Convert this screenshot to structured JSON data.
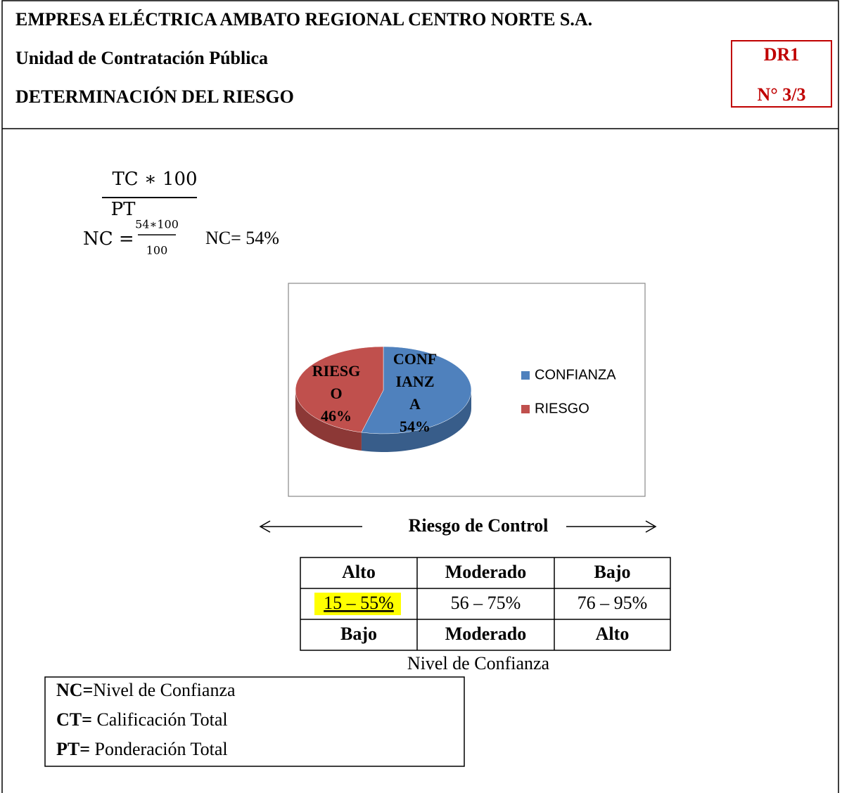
{
  "header": {
    "company": "EMPRESA ELÉCTRICA AMBATO REGIONAL CENTRO NORTE S.A.",
    "unit": "Unidad de Contratación Pública",
    "title": "DETERMINACIÓN DEL RIESGO",
    "code": "DR1",
    "number": "N° 3/3"
  },
  "formula": {
    "numerator": "TC ∗ 100",
    "denominator": "PT",
    "lhs": "NC =",
    "numerator2": "54∗100",
    "denominator2": "100",
    "result": "NC= 54%"
  },
  "chart": {
    "type": "pie",
    "categories": [
      "CONFIANZA",
      "RIESGO"
    ],
    "values": [
      54,
      46
    ],
    "value_labels": [
      "54%",
      "46%"
    ],
    "colors": [
      "#4f81bd",
      "#c0504d"
    ],
    "side_colors": [
      "#385d8a",
      "#8c3836"
    ]
  },
  "scale_label": "Riesgo de Control",
  "table": {
    "rows": [
      [
        "Alto",
        "Moderado",
        "Bajo"
      ],
      [
        "15 – 55%",
        "56 – 75%",
        "76 – 95%"
      ],
      [
        "Bajo",
        "Moderado",
        "Alto"
      ]
    ],
    "caption": "Nivel de Confianza"
  },
  "legend": [
    {
      "term": "NC=",
      "text": "Nivel de Confianza"
    },
    {
      "term": "CT=",
      "text": " Calificación Total"
    },
    {
      "term": "PT=",
      "text": " Ponderación Total"
    }
  ]
}
